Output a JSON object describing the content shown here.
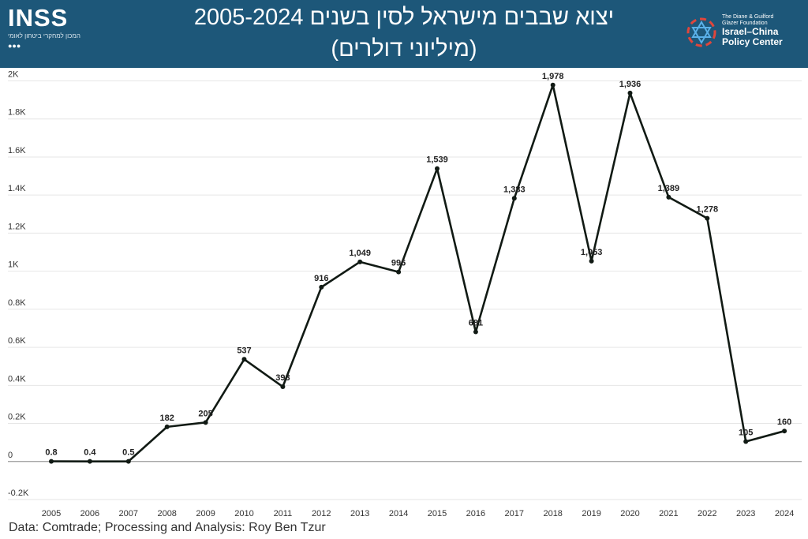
{
  "header": {
    "title_line1": "יצוא שבבים מישראל לסין בשנים 2005-2024",
    "title_line2": "(מיליוני דולרים)"
  },
  "logo_left": {
    "brand": "INSS",
    "subtitle": "המכון למחקרי ביטחון לאומי",
    "dots": "●●●"
  },
  "logo_right": {
    "foundation_line1": "The Diane & Guilford",
    "foundation_line2": "Glazer Foundation",
    "name_line1": "Israel–China",
    "name_line2": "Policy Center"
  },
  "source": "Data: Comtrade; Processing and Analysis: Roy Ben Tzur",
  "chart_data": {
    "type": "line",
    "title": "יצוא שבבים מישראל לסין בשנים 2005-2024 (מיליוני דולרים)",
    "x": [
      "2005",
      "2006",
      "2007",
      "2008",
      "2009",
      "2010",
      "2011",
      "2012",
      "2013",
      "2014",
      "2015",
      "2016",
      "2017",
      "2018",
      "2019",
      "2020",
      "2021",
      "2022",
      "2023",
      "2024"
    ],
    "values": [
      0.8,
      0.4,
      0.5,
      182,
      205,
      537,
      393,
      916,
      1049,
      996,
      1539,
      681,
      1383,
      1978,
      1053,
      1936,
      1389,
      1278,
      105,
      160
    ],
    "labels": [
      "0.8",
      "0.4",
      "0.5",
      "182",
      "205",
      "537",
      "393",
      "916",
      "1,049",
      "996",
      "1,539",
      "681",
      "1,383",
      "1,978",
      "1,053",
      "1,936",
      "1,389",
      "1,278",
      "105",
      "160"
    ],
    "yticks": [
      -200,
      0,
      200,
      400,
      600,
      800,
      1000,
      1200,
      1400,
      1600,
      1800,
      2000
    ],
    "ytick_labels": [
      "-0.2K",
      "0",
      "0.2K",
      "0.4K",
      "0.6K",
      "0.8K",
      "1K",
      "1.2K",
      "1.4K",
      "1.6K",
      "1.8K",
      "2K"
    ],
    "ylim": [
      -200,
      2000
    ],
    "grid": true,
    "legend": "none",
    "line_color": "#111a14",
    "grid_color": "#e6e6e6",
    "zero_line_color": "#9a9a9a"
  }
}
